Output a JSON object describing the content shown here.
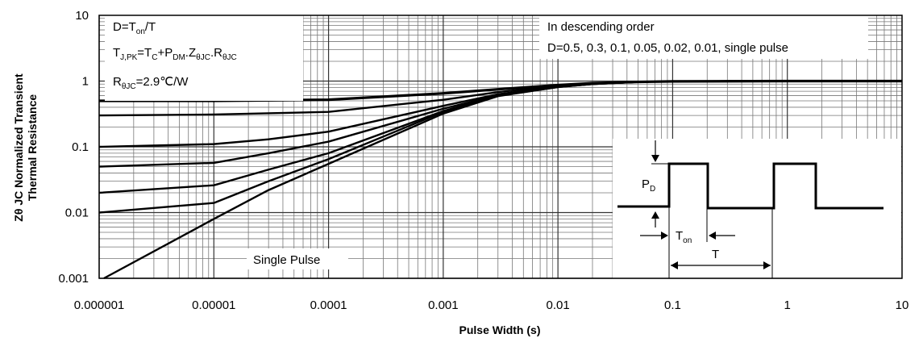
{
  "chart_data": {
    "type": "line",
    "title": "",
    "xlabel": "Pulse Width (s)",
    "ylabel_line1": "Zθ JC Normalized Transient",
    "ylabel_line2": "Thermal Resistance",
    "x_scale": "log",
    "y_scale": "log",
    "xlim": [
      1e-06,
      10
    ],
    "ylim": [
      0.001,
      10
    ],
    "grid": true,
    "x_ticks": [
      "0.000001",
      "0.00001",
      "0.0001",
      "0.001",
      "0.01",
      "0.1",
      "1",
      "10"
    ],
    "y_ticks": [
      "0.001",
      "0.01",
      "0.1",
      "1",
      "10"
    ],
    "series": [
      {
        "D": 0.5,
        "x": [
          1e-06,
          1e-05,
          0.0001,
          0.001,
          0.003,
          0.01,
          0.02,
          0.05,
          0.1,
          1,
          10
        ],
        "y": [
          0.5,
          0.5,
          0.52,
          0.65,
          0.75,
          0.87,
          0.93,
          0.97,
          0.99,
          1.0,
          1.0
        ]
      },
      {
        "D": 0.3,
        "x": [
          1e-06,
          1e-05,
          0.0001,
          0.001,
          0.003,
          0.01,
          0.02,
          0.05,
          0.1,
          1,
          10
        ],
        "y": [
          0.3,
          0.31,
          0.34,
          0.52,
          0.68,
          0.85,
          0.92,
          0.97,
          0.99,
          1.0,
          1.0
        ]
      },
      {
        "D": 0.1,
        "x": [
          1e-06,
          1e-05,
          3e-05,
          0.0001,
          0.001,
          0.003,
          0.01,
          0.02,
          0.05,
          0.1,
          1,
          10
        ],
        "y": [
          0.1,
          0.11,
          0.13,
          0.17,
          0.42,
          0.63,
          0.83,
          0.91,
          0.97,
          0.99,
          1.0,
          1.0
        ]
      },
      {
        "D": 0.05,
        "x": [
          1e-06,
          1e-05,
          3e-05,
          0.0001,
          0.001,
          0.003,
          0.01,
          0.02,
          0.05,
          0.1,
          1,
          10
        ],
        "y": [
          0.05,
          0.057,
          0.08,
          0.12,
          0.38,
          0.61,
          0.82,
          0.91,
          0.97,
          0.99,
          1.0,
          1.0
        ]
      },
      {
        "D": 0.02,
        "x": [
          1e-06,
          1e-05,
          3e-05,
          0.0001,
          0.001,
          0.003,
          0.01,
          0.02,
          0.05,
          0.1,
          1,
          10
        ],
        "y": [
          0.02,
          0.026,
          0.045,
          0.08,
          0.35,
          0.6,
          0.82,
          0.9,
          0.97,
          0.99,
          1.0,
          1.0
        ]
      },
      {
        "D": 0.01,
        "x": [
          1e-06,
          1e-05,
          3e-05,
          0.0001,
          0.001,
          0.003,
          0.01,
          0.02,
          0.05,
          0.1,
          1,
          10
        ],
        "y": [
          0.01,
          0.014,
          0.03,
          0.065,
          0.34,
          0.6,
          0.81,
          0.9,
          0.97,
          0.99,
          1.0,
          1.0
        ]
      },
      {
        "D": "single pulse",
        "x": [
          1.1e-06,
          1e-05,
          3e-05,
          0.0001,
          0.001,
          0.003,
          0.01,
          0.02,
          0.05,
          0.1,
          1,
          10
        ],
        "y": [
          0.001,
          0.008,
          0.022,
          0.055,
          0.32,
          0.59,
          0.81,
          0.9,
          0.97,
          0.99,
          1.0,
          1.0
        ]
      }
    ],
    "annotations": {
      "box_left": {
        "line1": "D=T",
        "line1_sub": "on",
        "line1_end": "/T",
        "line2_pre": "T",
        "line2_sub1": "J,PK",
        "line2_mid1": "=T",
        "line2_sub2": "C",
        "line2_mid2": "+P",
        "line2_sub3": "DM",
        "line2_mid3": ".Z",
        "line2_sub4": "θJC",
        "line2_mid4": ".R",
        "line2_sub5": "θJC",
        "line3_pre": "R",
        "line3_sub": "θJC",
        "line3_end": "=2.9℃/W"
      },
      "box_right_line1": "In descending order",
      "box_right_line2": "D=0.5, 0.3, 0.1, 0.05, 0.02, 0.01, single pulse",
      "single_pulse_label": "Single Pulse",
      "inset": {
        "pd": "P",
        "pd_sub": "D",
        "ton": "T",
        "ton_sub": "on",
        "t": "T"
      }
    }
  }
}
